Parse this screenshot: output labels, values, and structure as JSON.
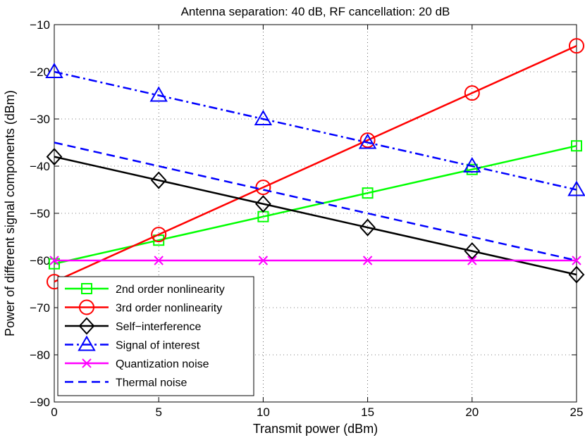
{
  "chart_data": {
    "type": "line",
    "title": "Antenna separation: 40 dB, RF cancellation: 20 dB",
    "xlabel": "Transmit power (dBm)",
    "ylabel": "Power of different signal components (dBm)",
    "xlim": [
      0,
      25
    ],
    "ylim": [
      -90,
      -10
    ],
    "xticks": [
      0,
      5,
      10,
      15,
      20,
      25
    ],
    "yticks": [
      -90,
      -80,
      -70,
      -60,
      -50,
      -40,
      -30,
      -20,
      -10
    ],
    "grid": true,
    "legend_position": "bottom-left",
    "series": [
      {
        "name": "2nd order nonlinearity",
        "color": "#00ff00",
        "line": "solid",
        "marker": "square",
        "x": [
          0,
          5,
          10,
          15,
          20,
          25
        ],
        "y": [
          -60.7,
          -55.7,
          -50.7,
          -45.7,
          -40.7,
          -35.7
        ]
      },
      {
        "name": "3rd order nonlinearity",
        "color": "#ff0000",
        "line": "solid",
        "marker": "circle",
        "x": [
          0,
          5,
          10,
          15,
          20,
          25
        ],
        "y": [
          -64.5,
          -54.5,
          -44.5,
          -34.5,
          -24.5,
          -14.5
        ]
      },
      {
        "name": "Self−interference",
        "color": "#000000",
        "line": "solid",
        "marker": "diamond",
        "x": [
          0,
          5,
          10,
          15,
          20,
          25
        ],
        "y": [
          -38,
          -43,
          -48,
          -53,
          -58,
          -63
        ]
      },
      {
        "name": "Signal of interest",
        "color": "#0000ff",
        "line": "dashdot",
        "marker": "triangle",
        "x": [
          0,
          5,
          10,
          15,
          20,
          25
        ],
        "y": [
          -20,
          -25,
          -30,
          -35,
          -40,
          -45
        ]
      },
      {
        "name": "Quantization noise",
        "color": "#ff00ff",
        "line": "solid",
        "marker": "x",
        "x": [
          0,
          5,
          10,
          15,
          20,
          25
        ],
        "y": [
          -60,
          -60,
          -60,
          -60,
          -60,
          -60
        ]
      },
      {
        "name": "Thermal noise",
        "color": "#0000ff",
        "line": "dashed",
        "marker": "none",
        "x": [
          0,
          5,
          10,
          15,
          20,
          25
        ],
        "y": [
          -35,
          -40,
          -45,
          -50,
          -55,
          -60
        ]
      }
    ]
  }
}
